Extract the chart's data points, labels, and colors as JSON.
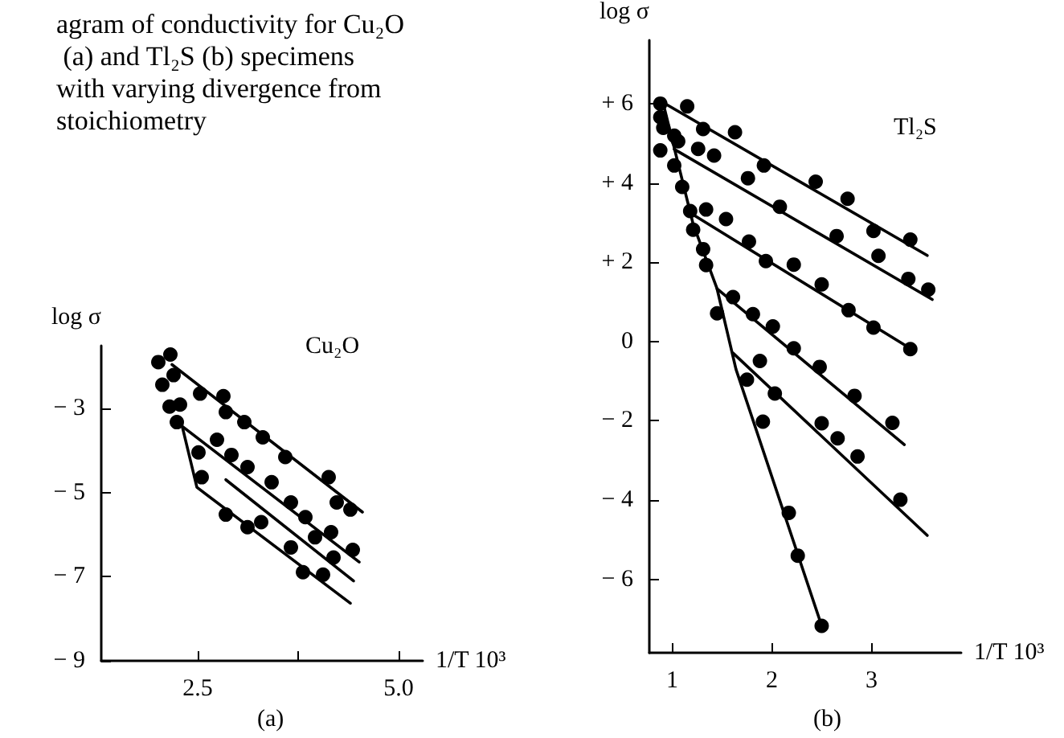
{
  "chart_data": [
    {
      "type": "scatter",
      "title": "agram of conductivity for Cu₂O (a) and Tl₂S (b) specimens with varying divergence from stoichiometry",
      "xlabel": "1/T 10³",
      "ylabel": "log σ",
      "annotations": [
        "Cu₂O",
        "(a)"
      ],
      "xlim": [
        1.3,
        5.3
      ],
      "ylim": [
        -9,
        -1.5
      ],
      "xticks": [
        2.5,
        {
          "value": 3.75,
          "label": null
        },
        {
          "value": 5,
          "label": "5.0"
        }
      ],
      "yticks": [
        {
          "value": -3,
          "label": "− 3"
        },
        {
          "value": -5,
          "label": "− 5"
        },
        {
          "value": -7,
          "label": "− 7"
        },
        {
          "value": -9,
          "label": "− 9"
        }
      ],
      "grid": false,
      "series": [
        {
          "type": "line",
          "marker": "none",
          "line_style": "solid",
          "color": "#000000",
          "x": [
            2.18,
            4.55
          ],
          "values": [
            -1.95,
            -5.46
          ]
        },
        {
          "type": "line",
          "marker": "none",
          "line_style": "solid",
          "color": "#000000",
          "x": [
            2.24,
            4.51
          ],
          "values": [
            -3.32,
            -6.65
          ]
        },
        {
          "type": "line",
          "marker": "none",
          "line_style": "solid",
          "color": "#000000",
          "x": [
            2.85,
            4.44
          ],
          "values": [
            -4.69,
            -7.1
          ]
        },
        {
          "type": "line",
          "marker": "none",
          "line_style": "solid",
          "color": "#000000",
          "x": [
            2.31,
            2.49,
            4.4
          ],
          "values": [
            -3.44,
            -4.87,
            -7.63
          ]
        },
        {
          "marker": "circle",
          "color": "#000000",
          "x": [
            2.16,
            2.01,
            2.2,
            2.53,
            2.82,
            2.85,
            3.08,
            3.31,
            3.59,
            4.13,
            4.23,
            4.4,
            2.06,
            2.15,
            2.28,
            2.24,
            2.74,
            2.92,
            3.12,
            3.42,
            3.66,
            3.84,
            4.16,
            4.43,
            3.96,
            4.19,
            2.51,
            2.55,
            2.85,
            3.12,
            3.29,
            3.66,
            3.81,
            4.06
          ],
          "values": [
            -1.71,
            -1.89,
            -2.2,
            -2.64,
            -2.7,
            -3.08,
            -3.32,
            -3.68,
            -4.15,
            -4.63,
            -5.23,
            -5.4,
            -2.43,
            -2.95,
            -2.9,
            -3.32,
            -3.74,
            -4.1,
            -4.39,
            -4.75,
            -5.23,
            -5.58,
            -5.94,
            -6.36,
            -6.06,
            -6.54,
            -4.04,
            -4.63,
            -5.52,
            -5.82,
            -5.7,
            -6.3,
            -6.89,
            -6.95
          ]
        }
      ]
    },
    {
      "type": "scatter",
      "xlabel": "1/T 10³",
      "ylabel": "log σ",
      "annotations": [
        "Tl₂S",
        "(b)"
      ],
      "xlim": [
        0.77,
        3.9
      ],
      "ylim": [
        -7.85,
        7.6
      ],
      "xticks": [
        1,
        2,
        3
      ],
      "yticks": [
        {
          "value": 6,
          "label": "+ 6"
        },
        {
          "value": 4,
          "label": "+ 4"
        },
        {
          "value": 2,
          "label": "+ 2"
        },
        0,
        {
          "value": -2,
          "label": "− 2"
        },
        {
          "value": -4,
          "label": "− 4"
        },
        {
          "value": -6,
          "label": "− 6"
        }
      ],
      "grid": false,
      "series": [
        {
          "type": "line",
          "marker": "none",
          "line_style": "solid",
          "color": "#000000",
          "x": [
            0.88,
            3.56
          ],
          "values": [
            6.07,
            2.17
          ]
        },
        {
          "type": "line",
          "marker": "none",
          "line_style": "solid",
          "color": "#000000",
          "x": [
            1.02,
            3.61
          ],
          "values": [
            4.85,
            1.06
          ]
        },
        {
          "type": "line",
          "marker": "none",
          "line_style": "solid",
          "color": "#000000",
          "x": [
            1.15,
            3.42
          ],
          "values": [
            3.29,
            -0.22
          ]
        },
        {
          "type": "line",
          "marker": "none",
          "line_style": "solid",
          "color": "#000000",
          "x": [
            1.45,
            3.33
          ],
          "values": [
            1.33,
            -2.6
          ]
        },
        {
          "type": "line",
          "marker": "none",
          "line_style": "solid",
          "color": "#000000",
          "x": [
            1.61,
            3.56
          ],
          "values": [
            -0.29,
            -4.89
          ]
        },
        {
          "type": "line",
          "marker": "none",
          "line_style": "solid",
          "color": "#000000",
          "x": [
            0.91,
            1.21,
            1.45,
            1.64,
            2.5
          ],
          "values": [
            6.0,
            2.96,
            1.33,
            -0.7,
            -7.17
          ]
        },
        {
          "marker": "circle",
          "color": "#000000",
          "x": [
            0.88,
            1.15,
            1.31,
            1.63,
            1.92,
            2.44,
            2.76,
            3.02,
            3.39,
            0.88,
            1.26,
            1.42,
            1.76,
            2.08,
            2.65,
            3.07,
            3.37,
            3.57,
            1.18,
            1.34,
            1.54,
            1.77,
            1.94,
            2.22,
            2.5,
            2.77,
            3.02,
            3.39,
            0.88,
            0.91,
            1.02,
            1.06,
            1.02,
            1.1,
            1.21,
            1.31,
            1.34,
            1.45,
            1.61,
            1.81,
            2.01,
            2.22,
            2.48,
            2.83,
            3.21,
            1.88,
            2.03,
            2.5,
            2.66,
            2.86,
            3.29,
            1.75,
            1.91,
            2.17,
            2.26,
            2.5
          ],
          "values": [
            6.0,
            5.93,
            5.36,
            5.28,
            4.44,
            4.03,
            3.6,
            2.79,
            2.57,
            4.82,
            4.86,
            4.69,
            4.12,
            3.4,
            2.66,
            2.16,
            1.58,
            1.31,
            3.29,
            3.33,
            3.09,
            2.52,
            2.03,
            1.94,
            1.44,
            0.79,
            0.35,
            -0.19,
            5.66,
            5.39,
            5.19,
            5.05,
            4.44,
            3.9,
            2.82,
            2.33,
            1.93,
            0.71,
            1.12,
            0.69,
            0.38,
            -0.17,
            -0.64,
            -1.37,
            -2.05,
            -0.49,
            -1.31,
            -2.06,
            -2.44,
            -2.9,
            -3.99,
            -0.96,
            -2.02,
            -4.32,
            -5.4,
            -7.17
          ]
        }
      ]
    }
  ]
}
